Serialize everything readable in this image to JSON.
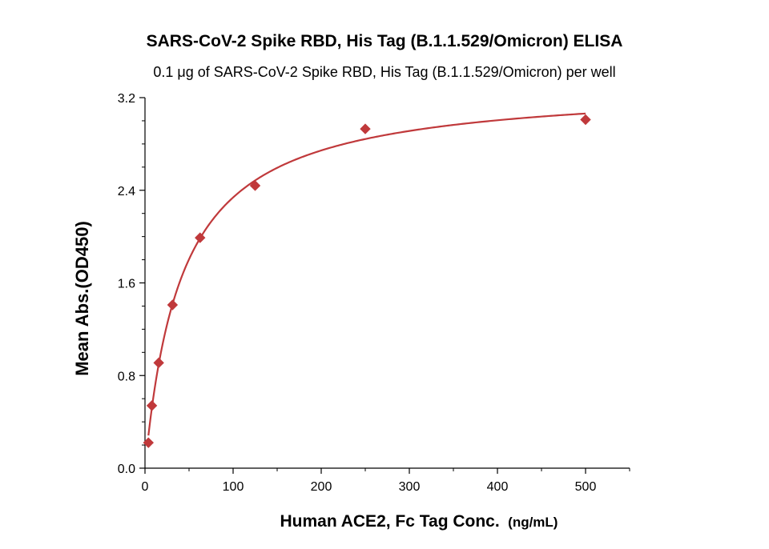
{
  "chart_data": {
    "type": "scatter",
    "title": "SARS-CoV-2 Spike RBD, His Tag (B.1.1.529/Omicron) ELISA",
    "subtitle": "0.1 μg of SARS-CoV-2 Spike RBD, His Tag (B.1.1.529/Omicron) per well",
    "xlabel": "Human ACE2, Fc Tag Conc.",
    "xlabel_unit": "(ng/mL)",
    "ylabel": "Mean Abs.(OD450)",
    "xlim": [
      0,
      550
    ],
    "ylim": [
      0,
      3.2
    ],
    "x_ticks": [
      "0",
      "100",
      "200",
      "300",
      "400",
      "500"
    ],
    "y_ticks": [
      "0.0",
      "0.8",
      "1.6",
      "2.4",
      "3.2"
    ],
    "grid": false,
    "series": [
      {
        "x": [
          3.9,
          7.8,
          15.6,
          31.25,
          62.5,
          125,
          250,
          500
        ],
        "y": [
          0.22,
          0.54,
          0.91,
          1.41,
          1.99,
          2.44,
          2.93,
          3.01
        ],
        "marker": "diamond",
        "color": "#c0393b",
        "fit": "hyperbolic",
        "fit_line_color": "#c0393b"
      }
    ]
  }
}
